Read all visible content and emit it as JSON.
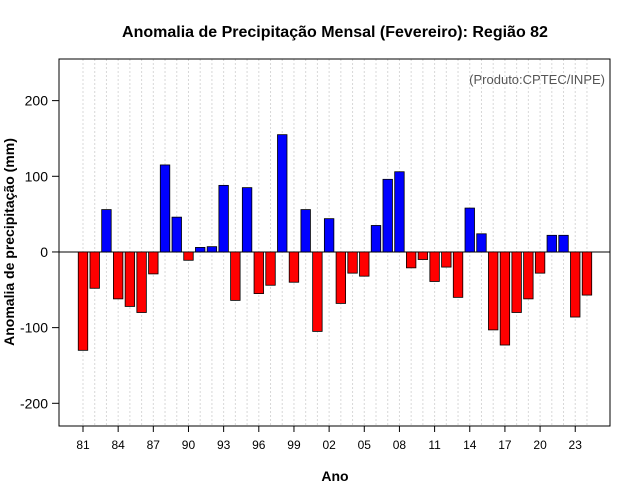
{
  "chart_data": {
    "type": "bar",
    "title": "Anomalia de Precipitação Mensal (Fevereiro): Região 82",
    "xlabel": "Ano",
    "ylabel": "Anomalia de precipitação (mm)",
    "annotation": "(Produto:CPTEC/INPE)",
    "ylim": [
      -230,
      255
    ],
    "yticks": [
      -200,
      -100,
      0,
      100,
      200
    ],
    "xtick_labels": [
      "81",
      "84",
      "87",
      "90",
      "93",
      "96",
      "99",
      "02",
      "05",
      "08",
      "11",
      "14",
      "17",
      "20",
      "23"
    ],
    "xtick_every": 3,
    "categories": [
      "1981",
      "1982",
      "1983",
      "1984",
      "1985",
      "1986",
      "1987",
      "1988",
      "1989",
      "1990",
      "1991",
      "1992",
      "1993",
      "1994",
      "1995",
      "1996",
      "1997",
      "1998",
      "1999",
      "2000",
      "2001",
      "2002",
      "2003",
      "2004",
      "2005",
      "2006",
      "2007",
      "2008",
      "2009",
      "2010",
      "2011",
      "2012",
      "2013",
      "2014",
      "2015",
      "2016",
      "2017",
      "2018",
      "2019",
      "2020",
      "2021",
      "2022",
      "2023",
      "2024"
    ],
    "values": [
      -130,
      -48,
      56,
      -62,
      -72,
      -80,
      -29,
      115,
      46,
      -11,
      6,
      7,
      88,
      -64,
      85,
      -55,
      -44,
      155,
      -40,
      56,
      -105,
      44,
      -68,
      -28,
      -32,
      35,
      96,
      106,
      -21,
      -10,
      -39,
      -20,
      -60,
      58,
      24,
      -103,
      -123,
      -80,
      -62,
      -28,
      22,
      22,
      -86,
      -57
    ],
    "colors": {
      "positive": "#0000ff",
      "negative": "#ff0000",
      "grid": "#d8d8d8",
      "zero_line": "#000000"
    },
    "grid": true
  }
}
